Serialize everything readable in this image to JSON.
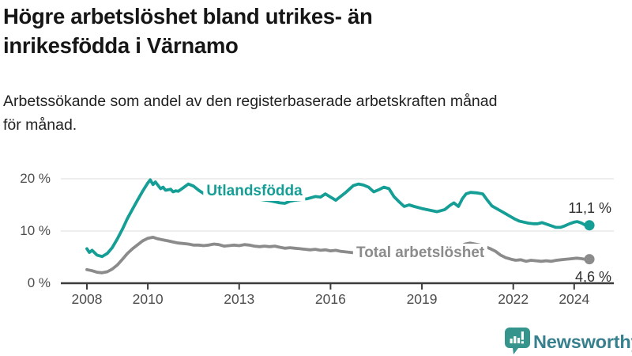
{
  "header": {
    "title_lines": [
      "Högre arbetslöshet bland utrikes- än",
      "inrikesfödda i Värnamo"
    ],
    "subtitle_lines": [
      "Arbetssökande som andel av den registerbaserade arbetskraften månad",
      "för månad."
    ]
  },
  "footer": {
    "brand": "Newsworthy",
    "brand_color": "#37808d",
    "icon_color": "#35958d",
    "icon_glyph_color": "#ffffff",
    "icon_name": "newsworthy-bar-chart-bubble-icon"
  },
  "chart_data": {
    "type": "line",
    "title": "Högre arbetslöshet bland utrikes- än inrikesfödda i Värnamo",
    "subtitle": "Arbetssökande som andel av den registerbaserade arbetskraften månad för månad.",
    "x_unit": "year (monthly series)",
    "y_unit": "percent of registered labour force",
    "xlim": [
      2008,
      2024.7
    ],
    "ylim": [
      0,
      22
    ],
    "grid": "horizontal",
    "axis_color": "#3c3c3c",
    "grid_color": "#dcdcdc",
    "tick_label_color": "#4d4d4d",
    "end_label_color": "#2e2e2e",
    "y_axis": {
      "ticks": [
        {
          "value": 0,
          "label": "0 %"
        },
        {
          "value": 10,
          "label": "10 %"
        },
        {
          "value": 20,
          "label": "20 %"
        }
      ]
    },
    "x_axis": {
      "ticks": [
        {
          "value": 2008,
          "label": "2008"
        },
        {
          "value": 2010,
          "label": "2010"
        },
        {
          "value": 2013,
          "label": "2013"
        },
        {
          "value": 2016,
          "label": "2016"
        },
        {
          "value": 2019,
          "label": "2019"
        },
        {
          "value": 2022,
          "label": "2022"
        },
        {
          "value": 2024,
          "label": "2024"
        }
      ]
    },
    "series": [
      {
        "name": "Utlandsfödda",
        "color": "#149e96",
        "end_label": "11,1 %",
        "end_value": 11.1,
        "end_label_position": "above",
        "label_anchor": {
          "x": 2013.5,
          "y": 17.6
        },
        "points": [
          [
            2008.0,
            6.6
          ],
          [
            2008.08,
            5.9
          ],
          [
            2008.17,
            6.3
          ],
          [
            2008.33,
            5.4
          ],
          [
            2008.5,
            5.1
          ],
          [
            2008.67,
            5.7
          ],
          [
            2008.83,
            6.8
          ],
          [
            2009.0,
            8.5
          ],
          [
            2009.17,
            10.4
          ],
          [
            2009.33,
            12.4
          ],
          [
            2009.5,
            14.2
          ],
          [
            2009.67,
            16.0
          ],
          [
            2009.83,
            17.6
          ],
          [
            2010.0,
            19.2
          ],
          [
            2010.08,
            19.8
          ],
          [
            2010.17,
            18.9
          ],
          [
            2010.25,
            19.4
          ],
          [
            2010.42,
            18.1
          ],
          [
            2010.5,
            18.4
          ],
          [
            2010.58,
            17.8
          ],
          [
            2010.75,
            18.0
          ],
          [
            2010.83,
            17.5
          ],
          [
            2010.92,
            17.7
          ],
          [
            2011.0,
            17.6
          ],
          [
            2011.17,
            18.3
          ],
          [
            2011.33,
            19.0
          ],
          [
            2011.5,
            18.6
          ],
          [
            2011.67,
            17.8
          ],
          [
            2011.83,
            17.2
          ],
          [
            2012.0,
            17.3
          ],
          [
            2012.25,
            17.1
          ],
          [
            2012.5,
            16.9
          ],
          [
            2012.75,
            16.7
          ],
          [
            2013.0,
            16.5
          ],
          [
            2013.25,
            16.4
          ],
          [
            2013.5,
            16.2
          ],
          [
            2013.75,
            16.0
          ],
          [
            2014.0,
            15.8
          ],
          [
            2014.17,
            15.6
          ],
          [
            2014.33,
            15.4
          ],
          [
            2014.5,
            15.3
          ],
          [
            2014.67,
            15.7
          ],
          [
            2014.83,
            15.9
          ],
          [
            2015.0,
            16.0
          ],
          [
            2015.25,
            16.2
          ],
          [
            2015.5,
            16.6
          ],
          [
            2015.67,
            16.5
          ],
          [
            2015.83,
            17.1
          ],
          [
            2016.0,
            16.5
          ],
          [
            2016.17,
            15.9
          ],
          [
            2016.33,
            16.6
          ],
          [
            2016.5,
            17.4
          ],
          [
            2016.75,
            18.7
          ],
          [
            2016.92,
            19.0
          ],
          [
            2017.08,
            18.8
          ],
          [
            2017.25,
            18.4
          ],
          [
            2017.42,
            17.5
          ],
          [
            2017.58,
            17.9
          ],
          [
            2017.75,
            18.4
          ],
          [
            2017.92,
            18.1
          ],
          [
            2018.08,
            16.6
          ],
          [
            2018.25,
            15.6
          ],
          [
            2018.42,
            14.7
          ],
          [
            2018.58,
            15.0
          ],
          [
            2018.75,
            14.7
          ],
          [
            2019.0,
            14.3
          ],
          [
            2019.25,
            14.0
          ],
          [
            2019.5,
            13.7
          ],
          [
            2019.75,
            14.1
          ],
          [
            2019.92,
            14.9
          ],
          [
            2020.05,
            15.4
          ],
          [
            2020.2,
            14.7
          ],
          [
            2020.33,
            16.2
          ],
          [
            2020.45,
            17.1
          ],
          [
            2020.6,
            17.4
          ],
          [
            2020.8,
            17.3
          ],
          [
            2021.0,
            17.1
          ],
          [
            2021.15,
            15.9
          ],
          [
            2021.3,
            14.8
          ],
          [
            2021.45,
            14.3
          ],
          [
            2021.6,
            13.8
          ],
          [
            2021.75,
            13.3
          ],
          [
            2021.9,
            12.8
          ],
          [
            2022.05,
            12.3
          ],
          [
            2022.2,
            11.9
          ],
          [
            2022.35,
            11.7
          ],
          [
            2022.5,
            11.5
          ],
          [
            2022.65,
            11.4
          ],
          [
            2022.8,
            11.4
          ],
          [
            2022.95,
            11.6
          ],
          [
            2023.1,
            11.3
          ],
          [
            2023.25,
            11.0
          ],
          [
            2023.4,
            10.7
          ],
          [
            2023.55,
            10.7
          ],
          [
            2023.7,
            11.0
          ],
          [
            2023.85,
            11.4
          ],
          [
            2024.0,
            11.7
          ],
          [
            2024.1,
            11.8
          ],
          [
            2024.25,
            11.5
          ],
          [
            2024.4,
            11.0
          ],
          [
            2024.5,
            11.1
          ]
        ]
      },
      {
        "name": "Total arbetslöshet",
        "color": "#8b8b8b",
        "end_label": "4,6 %",
        "end_value": 4.6,
        "end_label_position": "below",
        "label_anchor": {
          "x": 2018.95,
          "y": 5.8
        },
        "points": [
          [
            2008.0,
            2.6
          ],
          [
            2008.17,
            2.4
          ],
          [
            2008.33,
            2.1
          ],
          [
            2008.5,
            2.0
          ],
          [
            2008.67,
            2.2
          ],
          [
            2008.83,
            2.7
          ],
          [
            2009.0,
            3.5
          ],
          [
            2009.17,
            4.6
          ],
          [
            2009.33,
            5.7
          ],
          [
            2009.5,
            6.6
          ],
          [
            2009.67,
            7.4
          ],
          [
            2009.83,
            8.1
          ],
          [
            2010.0,
            8.6
          ],
          [
            2010.17,
            8.8
          ],
          [
            2010.33,
            8.5
          ],
          [
            2010.5,
            8.3
          ],
          [
            2010.67,
            8.1
          ],
          [
            2010.83,
            7.9
          ],
          [
            2011.0,
            7.7
          ],
          [
            2011.17,
            7.6
          ],
          [
            2011.33,
            7.5
          ],
          [
            2011.5,
            7.3
          ],
          [
            2011.67,
            7.3
          ],
          [
            2011.83,
            7.2
          ],
          [
            2012.0,
            7.3
          ],
          [
            2012.17,
            7.5
          ],
          [
            2012.33,
            7.4
          ],
          [
            2012.5,
            7.1
          ],
          [
            2012.67,
            7.2
          ],
          [
            2012.83,
            7.3
          ],
          [
            2013.0,
            7.2
          ],
          [
            2013.17,
            7.4
          ],
          [
            2013.33,
            7.3
          ],
          [
            2013.5,
            7.1
          ],
          [
            2013.67,
            7.0
          ],
          [
            2013.83,
            7.1
          ],
          [
            2014.0,
            7.0
          ],
          [
            2014.17,
            7.1
          ],
          [
            2014.33,
            6.9
          ],
          [
            2014.5,
            6.7
          ],
          [
            2014.67,
            6.8
          ],
          [
            2014.83,
            6.7
          ],
          [
            2015.0,
            6.6
          ],
          [
            2015.17,
            6.5
          ],
          [
            2015.33,
            6.4
          ],
          [
            2015.5,
            6.5
          ],
          [
            2015.67,
            6.3
          ],
          [
            2015.83,
            6.4
          ],
          [
            2016.0,
            6.2
          ],
          [
            2016.17,
            6.3
          ],
          [
            2016.33,
            6.1
          ],
          [
            2016.5,
            6.0
          ],
          [
            2016.67,
            5.9
          ],
          [
            2016.83,
            5.8
          ],
          [
            2017.0,
            5.8
          ],
          [
            2017.25,
            5.7
          ],
          [
            2017.5,
            5.6
          ],
          [
            2017.75,
            5.5
          ],
          [
            2018.0,
            5.4
          ],
          [
            2018.25,
            5.3
          ],
          [
            2018.5,
            5.2
          ],
          [
            2018.75,
            5.1
          ],
          [
            2019.0,
            5.1
          ],
          [
            2019.25,
            5.2
          ],
          [
            2019.5,
            5.1
          ],
          [
            2019.75,
            5.3
          ],
          [
            2019.92,
            5.4
          ],
          [
            2020.08,
            5.9
          ],
          [
            2020.25,
            7.0
          ],
          [
            2020.42,
            7.5
          ],
          [
            2020.58,
            7.7
          ],
          [
            2020.75,
            7.5
          ],
          [
            2020.92,
            7.3
          ],
          [
            2021.08,
            7.0
          ],
          [
            2021.25,
            6.6
          ],
          [
            2021.42,
            6.1
          ],
          [
            2021.58,
            5.4
          ],
          [
            2021.75,
            4.9
          ],
          [
            2021.92,
            4.6
          ],
          [
            2022.08,
            4.4
          ],
          [
            2022.25,
            4.5
          ],
          [
            2022.42,
            4.2
          ],
          [
            2022.58,
            4.4
          ],
          [
            2022.75,
            4.3
          ],
          [
            2022.92,
            4.2
          ],
          [
            2023.08,
            4.3
          ],
          [
            2023.25,
            4.2
          ],
          [
            2023.42,
            4.4
          ],
          [
            2023.58,
            4.5
          ],
          [
            2023.75,
            4.6
          ],
          [
            2023.92,
            4.7
          ],
          [
            2024.08,
            4.8
          ],
          [
            2024.25,
            4.7
          ],
          [
            2024.42,
            4.5
          ],
          [
            2024.5,
            4.6
          ]
        ]
      }
    ]
  }
}
